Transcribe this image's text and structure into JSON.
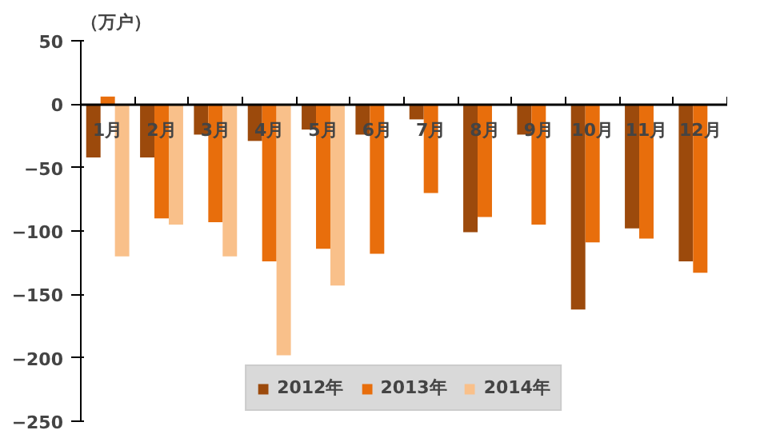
{
  "chart_data": {
    "type": "bar",
    "ylabel": "（万户）",
    "categories": [
      "1月",
      "2月",
      "3月",
      "4月",
      "5月",
      "6月",
      "7月",
      "8月",
      "9月",
      "10月",
      "11月",
      "12月"
    ],
    "series": [
      {
        "name": "2012年",
        "color": "#9c4a0c",
        "values": [
          -42,
          -42,
          -24,
          -29,
          -20,
          -24,
          -12,
          -101,
          -24,
          -162,
          -98,
          -124
        ]
      },
      {
        "name": "2013年",
        "color": "#e86e0c",
        "values": [
          6,
          -90,
          -93,
          -124,
          -114,
          -118,
          -70,
          -89,
          -95,
          -109,
          -106,
          -133
        ]
      },
      {
        "name": "2014年",
        "color": "#f9c08a",
        "values": [
          -120,
          -95,
          -120,
          -198,
          -143,
          null,
          null,
          null,
          null,
          null,
          null,
          null
        ]
      }
    ],
    "ylim": [
      -250,
      50
    ],
    "yticks": [
      -250,
      -200,
      -150,
      -100,
      -50,
      0,
      50
    ],
    "grid": false,
    "legend": "bottom"
  }
}
